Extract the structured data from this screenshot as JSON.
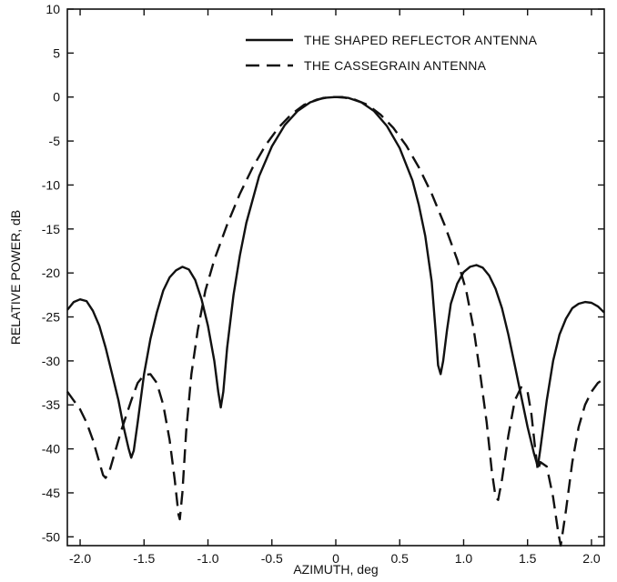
{
  "chart_data": {
    "type": "line",
    "title": "",
    "xlabel": "AZIMUTH, deg",
    "ylabel": "RELATIVE POWER, dB",
    "xlim": [
      -2.1,
      2.1
    ],
    "ylim": [
      -51,
      10
    ],
    "xticks": [
      -2.0,
      -1.5,
      -1.0,
      -0.5,
      0,
      0.5,
      1.0,
      1.5,
      2.0
    ],
    "xtick_labels": [
      "-2.0",
      "-1.5",
      "-1.0",
      "-0.5",
      "0",
      "0.5",
      "1.0",
      "1.5",
      "2.0"
    ],
    "yticks": [
      10,
      5,
      0,
      -5,
      -10,
      -15,
      -20,
      -25,
      -30,
      -35,
      -40,
      -45,
      -50
    ],
    "ytick_labels": [
      "10",
      "5",
      "0",
      "-5",
      "-10",
      "-15",
      "-20",
      "-25",
      "-30",
      "-35",
      "-40",
      "-45",
      "-50"
    ],
    "grid": false,
    "legend_position": "top-right",
    "line_color": "#111111",
    "series": [
      {
        "name": "THE SHAPED REFLECTOR ANTENNA",
        "style": "solid",
        "points": [
          [
            -2.1,
            -24.2
          ],
          [
            -2.05,
            -23.3
          ],
          [
            -2.0,
            -23.0
          ],
          [
            -1.95,
            -23.2
          ],
          [
            -1.9,
            -24.3
          ],
          [
            -1.85,
            -26.0
          ],
          [
            -1.8,
            -28.5
          ],
          [
            -1.75,
            -31.5
          ],
          [
            -1.7,
            -34.5
          ],
          [
            -1.66,
            -37.5
          ],
          [
            -1.62,
            -40.0
          ],
          [
            -1.6,
            -41.0
          ],
          [
            -1.58,
            -40.2
          ],
          [
            -1.55,
            -37.0
          ],
          [
            -1.5,
            -31.5
          ],
          [
            -1.45,
            -27.5
          ],
          [
            -1.4,
            -24.5
          ],
          [
            -1.35,
            -22.0
          ],
          [
            -1.3,
            -20.5
          ],
          [
            -1.25,
            -19.7
          ],
          [
            -1.2,
            -19.3
          ],
          [
            -1.15,
            -19.6
          ],
          [
            -1.1,
            -20.8
          ],
          [
            -1.05,
            -23.0
          ],
          [
            -1.0,
            -26.0
          ],
          [
            -0.95,
            -30.0
          ],
          [
            -0.92,
            -33.5
          ],
          [
            -0.9,
            -35.3
          ],
          [
            -0.88,
            -33.5
          ],
          [
            -0.85,
            -28.5
          ],
          [
            -0.8,
            -22.5
          ],
          [
            -0.75,
            -18.0
          ],
          [
            -0.7,
            -14.3
          ],
          [
            -0.6,
            -9.0
          ],
          [
            -0.5,
            -5.6
          ],
          [
            -0.4,
            -3.2
          ],
          [
            -0.3,
            -1.6
          ],
          [
            -0.2,
            -0.6
          ],
          [
            -0.1,
            -0.1
          ],
          [
            0.0,
            0.0
          ],
          [
            0.1,
            -0.1
          ],
          [
            0.2,
            -0.6
          ],
          [
            0.3,
            -1.6
          ],
          [
            0.4,
            -3.3
          ],
          [
            0.5,
            -5.8
          ],
          [
            0.6,
            -9.5
          ],
          [
            0.65,
            -12.3
          ],
          [
            0.7,
            -15.8
          ],
          [
            0.75,
            -21.0
          ],
          [
            0.78,
            -26.5
          ],
          [
            0.8,
            -30.5
          ],
          [
            0.82,
            -31.5
          ],
          [
            0.84,
            -30.0
          ],
          [
            0.87,
            -26.5
          ],
          [
            0.9,
            -23.5
          ],
          [
            0.95,
            -21.2
          ],
          [
            1.0,
            -19.9
          ],
          [
            1.05,
            -19.3
          ],
          [
            1.1,
            -19.1
          ],
          [
            1.15,
            -19.4
          ],
          [
            1.2,
            -20.3
          ],
          [
            1.25,
            -21.8
          ],
          [
            1.3,
            -24.0
          ],
          [
            1.35,
            -27.0
          ],
          [
            1.4,
            -30.5
          ],
          [
            1.45,
            -34.0
          ],
          [
            1.5,
            -37.5
          ],
          [
            1.55,
            -40.5
          ],
          [
            1.58,
            -42.0
          ],
          [
            1.6,
            -40.0
          ],
          [
            1.65,
            -34.5
          ],
          [
            1.7,
            -30.0
          ],
          [
            1.75,
            -27.0
          ],
          [
            1.8,
            -25.2
          ],
          [
            1.85,
            -24.0
          ],
          [
            1.9,
            -23.5
          ],
          [
            1.95,
            -23.3
          ],
          [
            2.0,
            -23.4
          ],
          [
            2.05,
            -23.8
          ],
          [
            2.1,
            -24.5
          ]
        ]
      },
      {
        "name": "THE CASSEGRAIN ANTENNA",
        "style": "dashed",
        "points": [
          [
            -2.1,
            -33.5
          ],
          [
            -2.05,
            -34.5
          ],
          [
            -2.0,
            -35.5
          ],
          [
            -1.95,
            -37.0
          ],
          [
            -1.9,
            -39.0
          ],
          [
            -1.85,
            -41.5
          ],
          [
            -1.82,
            -43.0
          ],
          [
            -1.8,
            -43.3
          ],
          [
            -1.77,
            -42.5
          ],
          [
            -1.73,
            -40.5
          ],
          [
            -1.68,
            -38.0
          ],
          [
            -1.6,
            -34.5
          ],
          [
            -1.55,
            -32.5
          ],
          [
            -1.5,
            -31.6
          ],
          [
            -1.45,
            -31.5
          ],
          [
            -1.4,
            -32.5
          ],
          [
            -1.35,
            -35.0
          ],
          [
            -1.3,
            -39.0
          ],
          [
            -1.26,
            -43.5
          ],
          [
            -1.23,
            -47.5
          ],
          [
            -1.22,
            -48.0
          ],
          [
            -1.2,
            -45.0
          ],
          [
            -1.17,
            -38.0
          ],
          [
            -1.13,
            -31.5
          ],
          [
            -1.08,
            -26.5
          ],
          [
            -1.02,
            -22.0
          ],
          [
            -0.95,
            -18.5
          ],
          [
            -0.85,
            -14.5
          ],
          [
            -0.75,
            -11.0
          ],
          [
            -0.65,
            -8.0
          ],
          [
            -0.55,
            -5.5
          ],
          [
            -0.45,
            -3.5
          ],
          [
            -0.35,
            -2.0
          ],
          [
            -0.25,
            -0.9
          ],
          [
            -0.15,
            -0.3
          ],
          [
            -0.05,
            0.0
          ],
          [
            0.0,
            0.0
          ],
          [
            0.05,
            0.0
          ],
          [
            0.15,
            -0.3
          ],
          [
            0.25,
            -0.9
          ],
          [
            0.35,
            -2.0
          ],
          [
            0.45,
            -3.5
          ],
          [
            0.55,
            -5.5
          ],
          [
            0.65,
            -8.0
          ],
          [
            0.75,
            -11.0
          ],
          [
            0.85,
            -14.5
          ],
          [
            0.95,
            -18.5
          ],
          [
            1.02,
            -22.0
          ],
          [
            1.08,
            -26.5
          ],
          [
            1.13,
            -31.5
          ],
          [
            1.18,
            -37.0
          ],
          [
            1.22,
            -42.5
          ],
          [
            1.25,
            -45.5
          ],
          [
            1.27,
            -45.8
          ],
          [
            1.3,
            -43.5
          ],
          [
            1.35,
            -38.5
          ],
          [
            1.4,
            -34.5
          ],
          [
            1.45,
            -33.0
          ],
          [
            1.5,
            -33.5
          ],
          [
            1.53,
            -36.0
          ],
          [
            1.56,
            -40.0
          ],
          [
            1.58,
            -42.5
          ],
          [
            1.6,
            -41.5
          ],
          [
            1.65,
            -42.0
          ],
          [
            1.7,
            -45.5
          ],
          [
            1.74,
            -49.5
          ],
          [
            1.76,
            -51.0
          ],
          [
            1.8,
            -47.0
          ],
          [
            1.85,
            -41.5
          ],
          [
            1.9,
            -37.5
          ],
          [
            1.95,
            -35.0
          ],
          [
            2.0,
            -33.5
          ],
          [
            2.05,
            -32.5
          ],
          [
            2.1,
            -32.0
          ]
        ]
      }
    ]
  }
}
